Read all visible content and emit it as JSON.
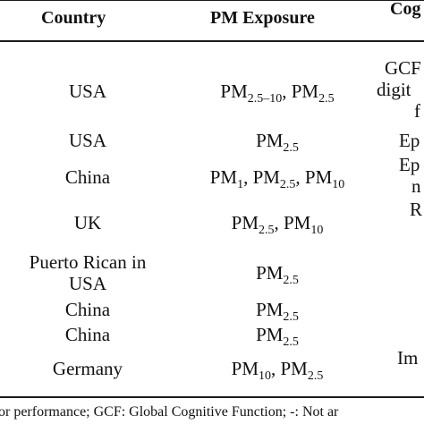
{
  "table": {
    "headers": {
      "country": "Country",
      "pm_exposure": "PM Exposure",
      "cognitive": "Cog"
    },
    "rows": [
      {
        "country": [
          "USA"
        ],
        "pm": [
          {
            "base": "PM",
            "sub": "2.5–10"
          },
          {
            "sep": ", "
          },
          {
            "base": "PM",
            "sub": "2.5"
          }
        ],
        "cog": [
          "GCF",
          "digit",
          "f"
        ]
      },
      {
        "country": [
          "USA"
        ],
        "pm": [
          {
            "base": "PM",
            "sub": "2.5"
          }
        ],
        "cog": [
          "Ep"
        ]
      },
      {
        "country": [
          "China"
        ],
        "pm": [
          {
            "base": "PM",
            "sub": "1"
          },
          {
            "sep": ", "
          },
          {
            "base": "PM",
            "sub": "2.5"
          },
          {
            "sep": ", "
          },
          {
            "base": "PM",
            "sub": "10"
          }
        ],
        "cog": [
          "Ep",
          "n"
        ]
      },
      {
        "country": [
          "UK"
        ],
        "pm": [
          {
            "base": "PM",
            "sub": "2.5"
          },
          {
            "sep": ", "
          },
          {
            "base": "PM",
            "sub": "10"
          }
        ],
        "cog": [
          "R"
        ]
      },
      {
        "country": [
          "Puerto Rican in",
          "USA"
        ],
        "pm": [
          {
            "base": "PM",
            "sub": "2.5"
          }
        ],
        "cog": []
      },
      {
        "country": [
          "China"
        ],
        "pm": [
          {
            "base": "PM",
            "sub": "2.5"
          }
        ],
        "cog": []
      },
      {
        "country": [
          "China"
        ],
        "pm": [
          {
            "base": "PM",
            "sub": "2.5"
          }
        ],
        "cog": []
      },
      {
        "country": [
          "Germany"
        ],
        "pm": [
          {
            "base": "PM",
            "sub": "10"
          },
          {
            "sep": ", "
          },
          {
            "base": "PM",
            "sub": "2.5"
          }
        ],
        "cog": [
          "Im"
        ]
      }
    ]
  },
  "footnote": "or performance; GCF: Global Cognitive Function; -: Not ar"
}
